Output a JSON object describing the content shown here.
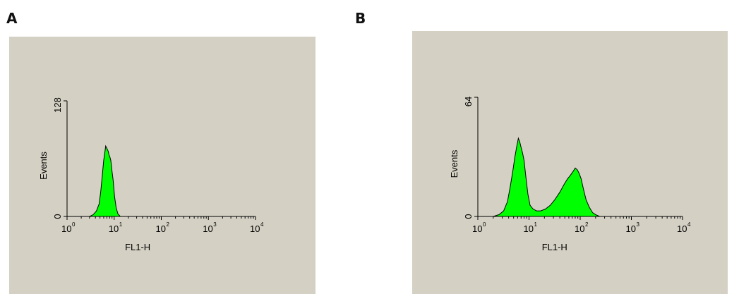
{
  "panels": [
    {
      "label": "A",
      "chart_data": {
        "type": "area",
        "xscale": "log",
        "xlim": [
          1,
          10000
        ],
        "ylim": [
          0,
          128
        ],
        "xlabel": "FL1-H",
        "ylabel": "Events",
        "y_ticklabels": [
          "0",
          "128"
        ],
        "x_ticklabels": [
          {
            "base": "10",
            "exp": "0"
          },
          {
            "base": "10",
            "exp": "1"
          },
          {
            "base": "10",
            "exp": "2"
          },
          {
            "base": "10",
            "exp": "3"
          },
          {
            "base": "10",
            "exp": "4"
          }
        ],
        "fill_color": "#00ff00",
        "series": [
          {
            "x": [
              3.0,
              3.6,
              4.2,
              4.8,
              5.2,
              5.6,
              6.0,
              6.3,
              6.6,
              6.9,
              7.2,
              7.5,
              7.8,
              8.1,
              8.5,
              9.0,
              9.5,
              10.2,
              11.0,
              12.0,
              13.5
            ],
            "y": [
              0,
              2,
              6,
              14,
              28,
              45,
              62,
              70,
              78,
              76,
              74,
              72,
              68,
              66,
              62,
              50,
              40,
              22,
              10,
              3,
              0
            ]
          }
        ]
      }
    },
    {
      "label": "B",
      "chart_data": {
        "type": "area",
        "xscale": "log",
        "xlim": [
          1,
          10000
        ],
        "ylim": [
          0,
          64
        ],
        "xlabel": "FL1-H",
        "ylabel": "Events",
        "y_ticklabels": [
          "0",
          "64"
        ],
        "x_ticklabels": [
          {
            "base": "10",
            "exp": "0"
          },
          {
            "base": "10",
            "exp": "1"
          },
          {
            "base": "10",
            "exp": "2"
          },
          {
            "base": "10",
            "exp": "3"
          },
          {
            "base": "10",
            "exp": "4"
          }
        ],
        "fill_color": "#00ff00",
        "series": [
          {
            "x": [
              2.0,
              2.6,
              3.2,
              3.8,
              4.3,
              4.8,
              5.3,
              5.8,
              6.2,
              6.6,
              7.0,
              7.5,
              8.0,
              8.6,
              9.5,
              10.5,
              12.0,
              14.0,
              17.0,
              21.0,
              26.0,
              32.0,
              40.0,
              48.0,
              56.0,
              64.0,
              72.0,
              80.0,
              88.0,
              96.0,
              105.0,
              115.0,
              130.0,
              150.0,
              175.0,
              200.0,
              240.0
            ],
            "y": [
              0,
              1,
              3,
              8,
              16,
              24,
              32,
              38,
              42,
              40,
              37,
              34,
              30,
              22,
              12,
              6,
              4,
              3,
              3,
              4,
              6,
              9,
              13,
              17,
              20,
              22,
              24,
              26,
              25,
              23,
              20,
              15,
              9,
              5,
              2,
              1,
              0
            ]
          }
        ]
      }
    }
  ]
}
